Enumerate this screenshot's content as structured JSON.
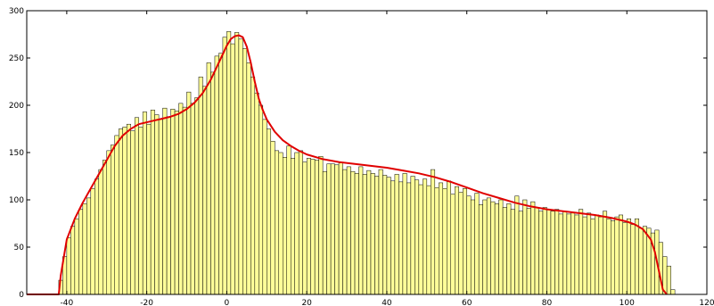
{
  "chart_data": {
    "type": "bar",
    "title": "",
    "xlabel": "",
    "ylabel": "",
    "xlim": [
      -50,
      120
    ],
    "ylim": [
      0,
      300
    ],
    "grid": false,
    "bin_width": 1,
    "x_ticks": [
      -40,
      -20,
      0,
      20,
      40,
      60,
      80,
      100,
      120
    ],
    "x_tick_labels": [
      "-40",
      "-20",
      "0",
      "20",
      "40",
      "60",
      "80",
      "100",
      "120"
    ],
    "y_ticks": [
      0,
      50,
      100,
      150,
      200,
      250,
      300
    ],
    "y_tick_labels": [
      "0",
      "50",
      "100",
      "150",
      "200",
      "250",
      "300"
    ],
    "histogram": {
      "bin_start": -42,
      "counts": [
        15,
        40,
        60,
        72,
        80,
        90,
        96,
        102,
        112,
        122,
        132,
        142,
        152,
        158,
        168,
        175,
        177,
        180,
        173,
        187,
        177,
        193,
        180,
        195,
        190,
        185,
        197,
        188,
        196,
        194,
        202,
        198,
        214,
        202,
        208,
        230,
        220,
        245,
        235,
        252,
        255,
        272,
        278,
        265,
        277,
        270,
        260,
        245,
        230,
        213,
        200,
        185,
        175,
        162,
        152,
        150,
        145,
        157,
        144,
        150,
        152,
        140,
        144,
        143,
        142,
        146,
        130,
        138,
        138,
        137,
        139,
        132,
        135,
        130,
        128,
        135,
        127,
        131,
        128,
        125,
        132,
        126,
        124,
        120,
        127,
        119,
        128,
        118,
        125,
        121,
        116,
        122,
        115,
        132,
        113,
        118,
        112,
        120,
        106,
        114,
        108,
        112,
        104,
        100,
        107,
        95,
        100,
        102,
        98,
        96,
        100,
        92,
        96,
        90,
        104,
        88,
        100,
        91,
        98,
        92,
        88,
        92,
        90,
        88,
        90,
        85,
        88,
        85,
        86,
        84,
        90,
        82,
        86,
        80,
        84,
        82,
        88,
        80,
        78,
        82,
        84,
        76,
        80,
        74,
        80,
        70,
        72,
        70,
        65,
        68,
        55,
        40,
        30,
        5
      ]
    },
    "fit_curve": {
      "name": "",
      "color": "#e00000",
      "points": [
        [
          -50,
          0
        ],
        [
          -42,
          0
        ],
        [
          -41.5,
          20
        ],
        [
          -40,
          58
        ],
        [
          -38,
          80
        ],
        [
          -36,
          97
        ],
        [
          -34,
          112
        ],
        [
          -32,
          127
        ],
        [
          -30,
          142
        ],
        [
          -28,
          157
        ],
        [
          -26,
          168
        ],
        [
          -24,
          175
        ],
        [
          -22,
          180
        ],
        [
          -20,
          182
        ],
        [
          -18,
          184
        ],
        [
          -16,
          186
        ],
        [
          -14,
          188
        ],
        [
          -12,
          191
        ],
        [
          -10,
          196
        ],
        [
          -8,
          203
        ],
        [
          -6,
          213
        ],
        [
          -4,
          227
        ],
        [
          -2,
          245
        ],
        [
          0,
          263
        ],
        [
          1,
          270
        ],
        [
          2,
          273
        ],
        [
          3,
          274
        ],
        [
          4,
          272
        ],
        [
          5,
          262
        ],
        [
          6,
          245
        ],
        [
          7,
          225
        ],
        [
          8,
          207
        ],
        [
          9,
          195
        ],
        [
          10,
          185
        ],
        [
          12,
          172
        ],
        [
          14,
          163
        ],
        [
          16,
          157
        ],
        [
          18,
          152
        ],
        [
          20,
          148
        ],
        [
          24,
          143
        ],
        [
          28,
          140
        ],
        [
          32,
          138
        ],
        [
          36,
          136
        ],
        [
          40,
          134
        ],
        [
          44,
          131
        ],
        [
          48,
          128
        ],
        [
          52,
          124
        ],
        [
          56,
          119
        ],
        [
          60,
          113
        ],
        [
          64,
          107
        ],
        [
          68,
          102
        ],
        [
          72,
          97
        ],
        [
          76,
          93
        ],
        [
          80,
          90
        ],
        [
          84,
          88
        ],
        [
          88,
          86
        ],
        [
          92,
          84
        ],
        [
          96,
          81
        ],
        [
          100,
          77
        ],
        [
          102,
          74
        ],
        [
          104,
          69
        ],
        [
          106,
          58
        ],
        [
          107,
          45
        ],
        [
          108,
          25
        ],
        [
          109,
          5
        ],
        [
          110,
          0
        ]
      ]
    },
    "colors": {
      "bar_fill": "#ffff99",
      "bar_stroke": "#000000",
      "fit_line": "#e00000",
      "axis": "#000000"
    }
  }
}
